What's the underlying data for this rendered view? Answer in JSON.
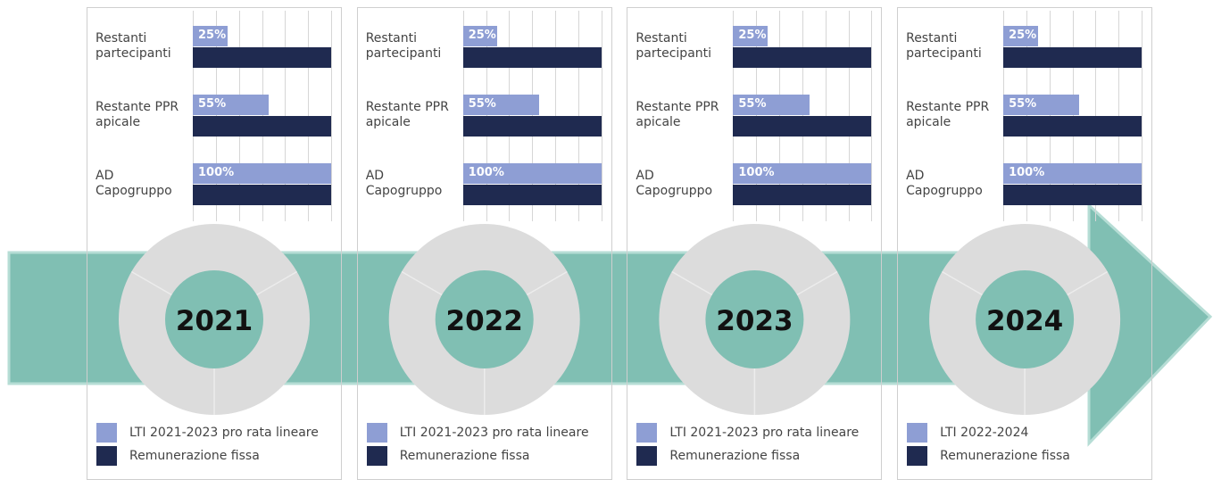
{
  "chart_data": [
    {
      "type": "bar",
      "title": "2021",
      "categories": [
        "Restanti\npartecipanti",
        "Restante PPR\napicale",
        "AD\nCapogruppo"
      ],
      "xlim": [
        0,
        100
      ],
      "grid": true,
      "series": [
        {
          "name": "LTI 2021-2023 pro rata lineare",
          "color": "#8e9ed4",
          "values": [
            25,
            55,
            100
          ],
          "value_labels": [
            "25%",
            "55%",
            "100%"
          ]
        },
        {
          "name": "Remunerazione fissa",
          "color": "#1f2a50",
          "values": [
            100,
            100,
            100
          ]
        }
      ]
    },
    {
      "type": "bar",
      "title": "2022",
      "categories": [
        "Restanti\npartecipanti",
        "Restante PPR\napicale",
        "AD\nCapogruppo"
      ],
      "xlim": [
        0,
        100
      ],
      "grid": true,
      "series": [
        {
          "name": "LTI 2021-2023 pro rata lineare",
          "color": "#8e9ed4",
          "values": [
            25,
            55,
            100
          ],
          "value_labels": [
            "25%",
            "55%",
            "100%"
          ]
        },
        {
          "name": "Remunerazione fissa",
          "color": "#1f2a50",
          "values": [
            100,
            100,
            100
          ]
        }
      ]
    },
    {
      "type": "bar",
      "title": "2023",
      "categories": [
        "Restanti\npartecipanti",
        "Restante PPR\napicale",
        "AD\nCapogruppo"
      ],
      "xlim": [
        0,
        100
      ],
      "grid": true,
      "series": [
        {
          "name": "LTI 2021-2023 pro rata lineare",
          "color": "#8e9ed4",
          "values": [
            25,
            55,
            100
          ],
          "value_labels": [
            "25%",
            "55%",
            "100%"
          ]
        },
        {
          "name": "Remunerazione fissa",
          "color": "#1f2a50",
          "values": [
            100,
            100,
            100
          ]
        }
      ]
    },
    {
      "type": "bar",
      "title": "2024",
      "categories": [
        "Restanti\npartecipanti",
        "Restante PPR\napicale",
        "AD\nCapogruppo"
      ],
      "xlim": [
        0,
        100
      ],
      "grid": true,
      "series": [
        {
          "name": "LTI 2022-2024",
          "color": "#8e9ed4",
          "values": [
            25,
            55,
            100
          ],
          "value_labels": [
            "25%",
            "55%",
            "100%"
          ]
        },
        {
          "name": "Remunerazione fissa",
          "color": "#1f2a50",
          "values": [
            100,
            100,
            100
          ]
        }
      ]
    }
  ]
}
